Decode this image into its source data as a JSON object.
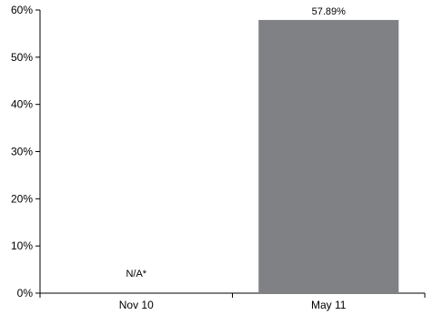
{
  "chart_data": {
    "type": "bar",
    "categories": [
      "Nov 10",
      "May 11"
    ],
    "values": [
      null,
      57.89
    ],
    "data_labels": [
      "N/A*",
      "57.89%"
    ],
    "ylim": [
      0,
      60
    ],
    "yticks": [
      0,
      10,
      20,
      30,
      40,
      50,
      60
    ],
    "ytick_labels": [
      "0%",
      "10%",
      "20%",
      "30%",
      "40%",
      "50%",
      "60%"
    ],
    "grid": false,
    "bar_color": "#808184",
    "title": "",
    "xlabel": "",
    "ylabel": ""
  }
}
